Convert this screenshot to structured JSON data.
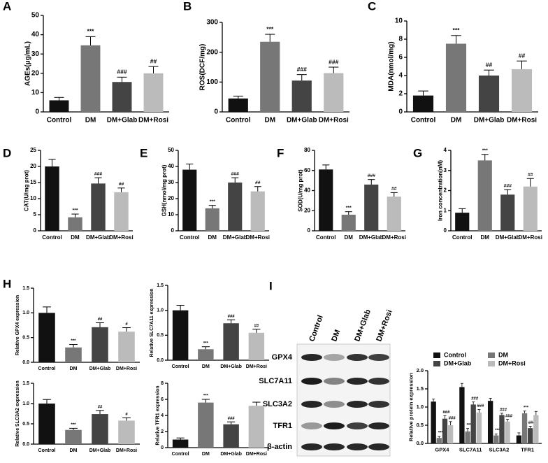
{
  "chart_data": [
    {
      "type": "bar",
      "panel": "A",
      "ylabel": "AGEs(μg/mL)",
      "categories": [
        "Control",
        "DM",
        "DM+Glab",
        "DM+Rosi"
      ],
      "values": [
        6,
        34.5,
        15.5,
        20
      ],
      "errors": [
        1.5,
        4.5,
        2.5,
        3.5
      ],
      "annotations": [
        null,
        "***",
        "###",
        "##"
      ],
      "colors": [
        "#111111",
        "#777777",
        "#444444",
        "#bbbbbb"
      ],
      "ylim": [
        0,
        50
      ],
      "yticks": [
        0,
        10,
        20,
        30,
        40,
        50
      ]
    },
    {
      "type": "bar",
      "panel": "B",
      "ylabel": "ROS(DCF/mg)",
      "categories": [
        "Control",
        "DM",
        "DM+Glab",
        "DM+Rosi"
      ],
      "values": [
        45,
        235,
        105,
        130
      ],
      "errors": [
        8,
        25,
        20,
        20
      ],
      "annotations": [
        null,
        "***",
        "###",
        "###"
      ],
      "colors": [
        "#111111",
        "#777777",
        "#444444",
        "#bbbbbb"
      ],
      "ylim": [
        0,
        300
      ],
      "yticks": [
        0,
        100,
        200,
        300
      ]
    },
    {
      "type": "bar",
      "panel": "C",
      "ylabel": "MDA(nmol/mg)",
      "categories": [
        "Control",
        "DM",
        "DM+Glab",
        "DM+Rosi"
      ],
      "values": [
        1.8,
        7.5,
        4.0,
        4.7
      ],
      "errors": [
        0.5,
        0.9,
        0.6,
        0.9
      ],
      "annotations": [
        null,
        "***",
        "##",
        "##"
      ],
      "colors": [
        "#111111",
        "#777777",
        "#444444",
        "#bbbbbb"
      ],
      "ylim": [
        0,
        10
      ],
      "yticks": [
        0,
        2,
        4,
        6,
        8,
        10
      ]
    },
    {
      "type": "bar",
      "panel": "D",
      "ylabel": "CAT(U/mg prot)",
      "categories": [
        "Control",
        "DM",
        "DM+Glab",
        "DM+Rosi"
      ],
      "values": [
        20,
        4.2,
        14.7,
        12
      ],
      "errors": [
        2.2,
        1,
        1.8,
        1.3
      ],
      "annotations": [
        null,
        "***",
        "###",
        "##"
      ],
      "colors": [
        "#111111",
        "#777777",
        "#444444",
        "#bbbbbb"
      ],
      "ylim": [
        0,
        25
      ],
      "yticks": [
        0,
        5,
        10,
        15,
        20,
        25
      ]
    },
    {
      "type": "bar",
      "panel": "E",
      "ylabel": "GSH(nmol/mg prot)",
      "categories": [
        "Control",
        "DM",
        "DM+Glab",
        "DM+Rosi"
      ],
      "values": [
        38,
        14,
        30,
        24.5
      ],
      "errors": [
        3.5,
        1.8,
        3,
        3
      ],
      "annotations": [
        null,
        "***",
        "###",
        "##"
      ],
      "colors": [
        "#111111",
        "#777777",
        "#444444",
        "#bbbbbb"
      ],
      "ylim": [
        0,
        50
      ],
      "yticks": [
        0,
        10,
        20,
        30,
        40,
        50
      ]
    },
    {
      "type": "bar",
      "panel": "F",
      "ylabel": "SOD(U/mg prot)",
      "categories": [
        "Control",
        "DM",
        "DM+Glab",
        "DM+Rosi"
      ],
      "values": [
        61,
        16,
        46,
        34
      ],
      "errors": [
        4.5,
        3,
        5,
        4
      ],
      "annotations": [
        null,
        "***",
        "###",
        "##"
      ],
      "colors": [
        "#111111",
        "#777777",
        "#444444",
        "#bbbbbb"
      ],
      "ylim": [
        0,
        80
      ],
      "yticks": [
        0,
        20,
        40,
        60,
        80
      ]
    },
    {
      "type": "bar",
      "panel": "G",
      "ylabel": "Iron concentration(nM)",
      "categories": [
        "Control",
        "DM",
        "DM+Glab",
        "DM+Rosi"
      ],
      "values": [
        0.9,
        3.5,
        1.8,
        2.2
      ],
      "errors": [
        0.2,
        0.3,
        0.25,
        0.4
      ],
      "annotations": [
        null,
        "***",
        "###",
        "##"
      ],
      "colors": [
        "#111111",
        "#777777",
        "#444444",
        "#bbbbbb"
      ],
      "ylim": [
        0,
        4
      ],
      "yticks": [
        0,
        1,
        2,
        3,
        4
      ]
    },
    {
      "type": "bar",
      "panel": "H",
      "ylabel": "Relative GPX4 expression",
      "categories": [
        "Control",
        "DM",
        "DM+Glab",
        "DM+Rosi"
      ],
      "values": [
        1.0,
        0.3,
        0.71,
        0.62
      ],
      "errors": [
        0.12,
        0.06,
        0.09,
        0.08
      ],
      "annotations": [
        null,
        "***",
        "##",
        "#"
      ],
      "colors": [
        "#111111",
        "#777777",
        "#444444",
        "#bbbbbb"
      ],
      "ylim": [
        0,
        1.5
      ],
      "yticks": [
        {
          "value": 0,
          "label": "0.0"
        },
        0.5,
        {
          "value": 1,
          "label": "1.0"
        },
        1.5
      ]
    },
    {
      "type": "bar",
      "ylabel": "Relative SLC7A11 expression",
      "categories": [
        "Control",
        "DM",
        "DM+Glab",
        "DM+Rosi"
      ],
      "values": [
        1.0,
        0.22,
        0.74,
        0.55
      ],
      "errors": [
        0.1,
        0.05,
        0.07,
        0.07
      ],
      "annotations": [
        null,
        "***",
        "###",
        "##"
      ],
      "colors": [
        "#111111",
        "#777777",
        "#444444",
        "#bbbbbb"
      ],
      "ylim": [
        0,
        1.5
      ],
      "yticks": [
        {
          "value": 0,
          "label": "0.0"
        },
        0.5,
        {
          "value": 1,
          "label": "1.0"
        },
        1.5
      ]
    },
    {
      "type": "bar",
      "ylabel": "Relative SLC3A2 expression",
      "categories": [
        "Control",
        "DM",
        "DM+Glab",
        "DM+Rosi"
      ],
      "values": [
        1.0,
        0.35,
        0.74,
        0.58
      ],
      "errors": [
        0.1,
        0.04,
        0.09,
        0.07
      ],
      "annotations": [
        null,
        "***",
        "##",
        "#"
      ],
      "colors": [
        "#111111",
        "#777777",
        "#444444",
        "#bbbbbb"
      ],
      "ylim": [
        0,
        1.5
      ],
      "yticks": [
        {
          "value": 0,
          "label": "0.0"
        },
        0.5,
        {
          "value": 1,
          "label": "1.0"
        },
        1.5
      ]
    },
    {
      "type": "bar",
      "ylabel": "Relative TFR1 expression",
      "categories": [
        "Control",
        "DM",
        "DM+Glab",
        "DM+Rosi"
      ],
      "values": [
        1.0,
        5.6,
        2.9,
        5.2
      ],
      "errors": [
        0.2,
        0.4,
        0.3,
        0.45
      ],
      "annotations": [
        null,
        "***",
        "###",
        null
      ],
      "colors": [
        "#111111",
        "#777777",
        "#444444",
        "#bbbbbb"
      ],
      "ylim": [
        0,
        8
      ],
      "yticks": [
        0,
        2,
        4,
        6,
        8
      ]
    },
    {
      "type": "grouped_bar",
      "panel": "I",
      "ylabel": "Relative protein expression",
      "categories": [
        "GPX4",
        "SLC7A11",
        "SLC3A2",
        "TFR1"
      ],
      "ylim": [
        0,
        2
      ],
      "yticks": [
        {
          "value": 0,
          "label": "0.0"
        },
        0.5,
        {
          "value": 1,
          "label": "1.0"
        },
        1.5,
        {
          "value": 2,
          "label": "2.0"
        }
      ],
      "series": [
        {
          "name": "Control",
          "color": "#111111",
          "values": [
            1.15,
            1.55,
            1.17,
            0.22
          ],
          "errors": [
            0.07,
            0.1,
            0.07,
            0.07
          ],
          "annotations": [
            null,
            null,
            null,
            null
          ]
        },
        {
          "name": "DM",
          "color": "#777777",
          "values": [
            0.15,
            0.33,
            0.22,
            0.83
          ],
          "errors": [
            0.04,
            0.08,
            0.04,
            0.06
          ],
          "annotations": [
            "***",
            "***",
            "***",
            "***"
          ]
        },
        {
          "name": "DM+Glab",
          "color": "#444444",
          "values": [
            0.68,
            1.07,
            0.78,
            0.42
          ],
          "errors": [
            0.08,
            0.07,
            0.05,
            0.05
          ],
          "annotations": [
            "###",
            "###",
            "###",
            "###"
          ]
        },
        {
          "name": "DM+Rosi",
          "color": "#bbbbbb",
          "values": [
            0.5,
            0.85,
            0.6,
            0.78
          ],
          "errors": [
            0.1,
            0.08,
            0.06,
            0.1
          ],
          "annotations": [
            "###",
            "###",
            "###",
            null
          ]
        }
      ]
    }
  ],
  "blot": {
    "lanes": [
      "Control",
      "DM",
      "DM+Glab",
      "DM+Rosi"
    ],
    "rows": [
      "GPX4",
      "SLC7A11",
      "SLC3A2",
      "TFR1",
      "β-actin"
    ]
  }
}
